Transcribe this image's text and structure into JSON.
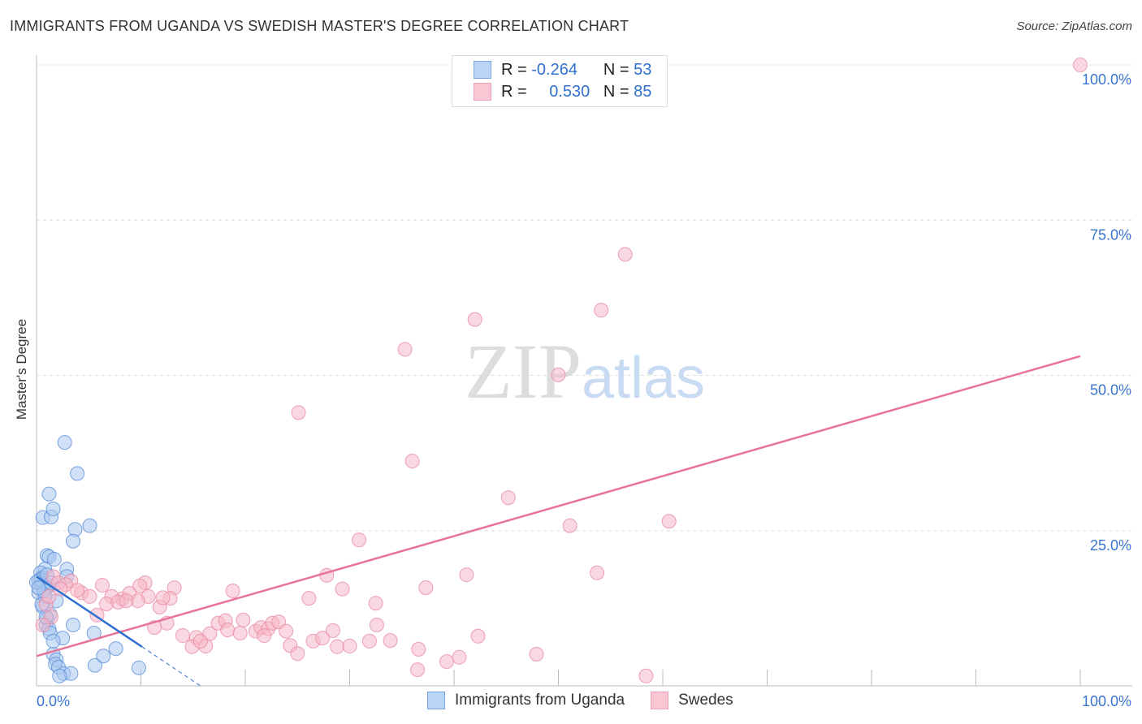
{
  "chart_data": {
    "type": "scatter",
    "title": "IMMIGRANTS FROM UGANDA VS SWEDISH MASTER'S DEGREE CORRELATION CHART",
    "source": "Source: ZipAtlas.com",
    "xlabel": "",
    "ylabel": "Master's Degree",
    "xlim": [
      0,
      100
    ],
    "ylim": [
      0,
      100
    ],
    "x_tick_labels": [
      "0.0%",
      "100.0%"
    ],
    "y_tick_labels": [
      "100.0%",
      "75.0%",
      "50.0%",
      "25.0%"
    ],
    "y_ticks": [
      100,
      75,
      50,
      25
    ],
    "grid": true,
    "watermark": "ZIPatlas",
    "legend": {
      "placement": "top-center",
      "rows": [
        {
          "r_label": "R =",
          "r_value": "-0.264",
          "n_label": "N =",
          "n_value": "53"
        },
        {
          "r_label": "R =",
          "r_value": "0.530",
          "n_label": "N =",
          "n_value": "85"
        }
      ]
    },
    "series": [
      {
        "name": "Immigrants from Uganda",
        "color": "#5b8fd6",
        "fill": "#a9c8f0",
        "trend": {
          "x0": 0,
          "y0": 17.6,
          "x1": 10.1,
          "y1": 6.3,
          "dash_to_x": 15.7,
          "dash_to_y": 0
        },
        "points": [
          [
            2.7,
            39.2
          ],
          [
            3.9,
            34.2
          ],
          [
            1.2,
            30.9
          ],
          [
            0.6,
            27.1
          ],
          [
            1.4,
            27.2
          ],
          [
            1.6,
            28.5
          ],
          [
            3.7,
            25.2
          ],
          [
            5.1,
            25.8
          ],
          [
            3.5,
            23.3
          ],
          [
            1.0,
            21.0
          ],
          [
            1.2,
            20.8
          ],
          [
            1.7,
            20.4
          ],
          [
            2.9,
            18.8
          ],
          [
            0.8,
            18.8
          ],
          [
            0.4,
            18.2
          ],
          [
            0.5,
            17.4
          ],
          [
            0.2,
            16.9
          ],
          [
            0.5,
            16.3
          ],
          [
            0.9,
            15.7
          ],
          [
            1.2,
            16.1
          ],
          [
            0.2,
            15.0
          ],
          [
            0.8,
            14.4
          ],
          [
            1.9,
            13.7
          ],
          [
            0.6,
            12.7
          ],
          [
            1.3,
            11.5
          ],
          [
            1.0,
            10.8
          ],
          [
            0.9,
            9.8
          ],
          [
            1.2,
            9.2
          ],
          [
            1.3,
            8.5
          ],
          [
            3.5,
            9.8
          ],
          [
            5.5,
            8.5
          ],
          [
            2.5,
            7.7
          ],
          [
            1.6,
            5.1
          ],
          [
            1.9,
            4.2
          ],
          [
            1.8,
            3.5
          ],
          [
            2.1,
            3.0
          ],
          [
            2.6,
            2.0
          ],
          [
            3.3,
            2.0
          ],
          [
            5.6,
            3.3
          ],
          [
            6.4,
            4.8
          ],
          [
            7.6,
            6.0
          ],
          [
            9.8,
            2.9
          ],
          [
            2.9,
            17.6
          ],
          [
            0.4,
            17.1
          ],
          [
            0.7,
            15.3
          ],
          [
            1.0,
            17.9
          ],
          [
            0.0,
            16.7
          ],
          [
            0.2,
            15.8
          ],
          [
            1.4,
            16.6
          ],
          [
            0.5,
            13.1
          ],
          [
            0.9,
            11.1
          ],
          [
            1.6,
            7.2
          ],
          [
            2.2,
            1.6
          ]
        ]
      },
      {
        "name": "Swedes",
        "color": "#e88aa5",
        "fill": "#f5b8c8",
        "trend": {
          "x0": 0,
          "y0": 4.8,
          "x1": 100,
          "y1": 53.1
        },
        "points": [
          [
            100,
            100
          ],
          [
            56.4,
            69.5
          ],
          [
            54.1,
            60.5
          ],
          [
            42.0,
            59.0
          ],
          [
            35.3,
            54.2
          ],
          [
            50.0,
            50.1
          ],
          [
            25.1,
            44.0
          ],
          [
            36.0,
            36.2
          ],
          [
            45.2,
            30.3
          ],
          [
            60.6,
            26.5
          ],
          [
            51.1,
            25.8
          ],
          [
            30.9,
            23.5
          ],
          [
            53.7,
            18.2
          ],
          [
            41.2,
            17.9
          ],
          [
            27.8,
            17.8
          ],
          [
            37.3,
            15.8
          ],
          [
            29.3,
            15.6
          ],
          [
            18.8,
            15.3
          ],
          [
            13.2,
            15.8
          ],
          [
            10.4,
            16.6
          ],
          [
            6.3,
            16.2
          ],
          [
            9.9,
            16.1
          ],
          [
            8.2,
            14.0
          ],
          [
            7.2,
            14.4
          ],
          [
            4.3,
            15.0
          ],
          [
            3.3,
            16.9
          ],
          [
            1.6,
            17.6
          ],
          [
            2.1,
            16.6
          ],
          [
            2.8,
            16.3
          ],
          [
            5.1,
            14.4
          ],
          [
            6.7,
            13.2
          ],
          [
            7.8,
            13.5
          ],
          [
            8.9,
            14.9
          ],
          [
            10.7,
            14.4
          ],
          [
            11.8,
            12.7
          ],
          [
            12.8,
            14.1
          ],
          [
            32.5,
            13.3
          ],
          [
            26.1,
            14.1
          ],
          [
            12.5,
            10.1
          ],
          [
            11.3,
            9.4
          ],
          [
            14.0,
            8.1
          ],
          [
            15.3,
            7.8
          ],
          [
            16.6,
            8.4
          ],
          [
            17.4,
            10.1
          ],
          [
            18.1,
            10.5
          ],
          [
            18.3,
            9.0
          ],
          [
            19.5,
            8.5
          ],
          [
            19.8,
            10.6
          ],
          [
            21.0,
            8.8
          ],
          [
            21.5,
            9.4
          ],
          [
            22.2,
            9.2
          ],
          [
            22.6,
            10.1
          ],
          [
            23.2,
            10.3
          ],
          [
            23.9,
            8.8
          ],
          [
            21.8,
            8.1
          ],
          [
            24.3,
            6.5
          ],
          [
            25.0,
            5.2
          ],
          [
            26.5,
            7.2
          ],
          [
            27.4,
            7.7
          ],
          [
            28.4,
            8.9
          ],
          [
            28.8,
            6.3
          ],
          [
            30.0,
            6.4
          ],
          [
            31.9,
            7.2
          ],
          [
            32.6,
            9.8
          ],
          [
            33.9,
            7.3
          ],
          [
            36.6,
            5.9
          ],
          [
            36.5,
            2.6
          ],
          [
            39.3,
            3.9
          ],
          [
            40.5,
            4.6
          ],
          [
            42.3,
            8.0
          ],
          [
            47.9,
            5.1
          ],
          [
            58.4,
            1.6
          ],
          [
            14.9,
            6.3
          ],
          [
            16.2,
            6.4
          ],
          [
            15.7,
            7.2
          ],
          [
            1.4,
            11.1
          ],
          [
            0.9,
            13.1
          ],
          [
            0.6,
            9.8
          ],
          [
            5.8,
            11.4
          ],
          [
            1.2,
            14.4
          ],
          [
            2.3,
            15.6
          ],
          [
            3.9,
            15.4
          ],
          [
            12.1,
            14.2
          ],
          [
            9.7,
            13.7
          ],
          [
            8.6,
            13.7
          ]
        ]
      }
    ]
  }
}
